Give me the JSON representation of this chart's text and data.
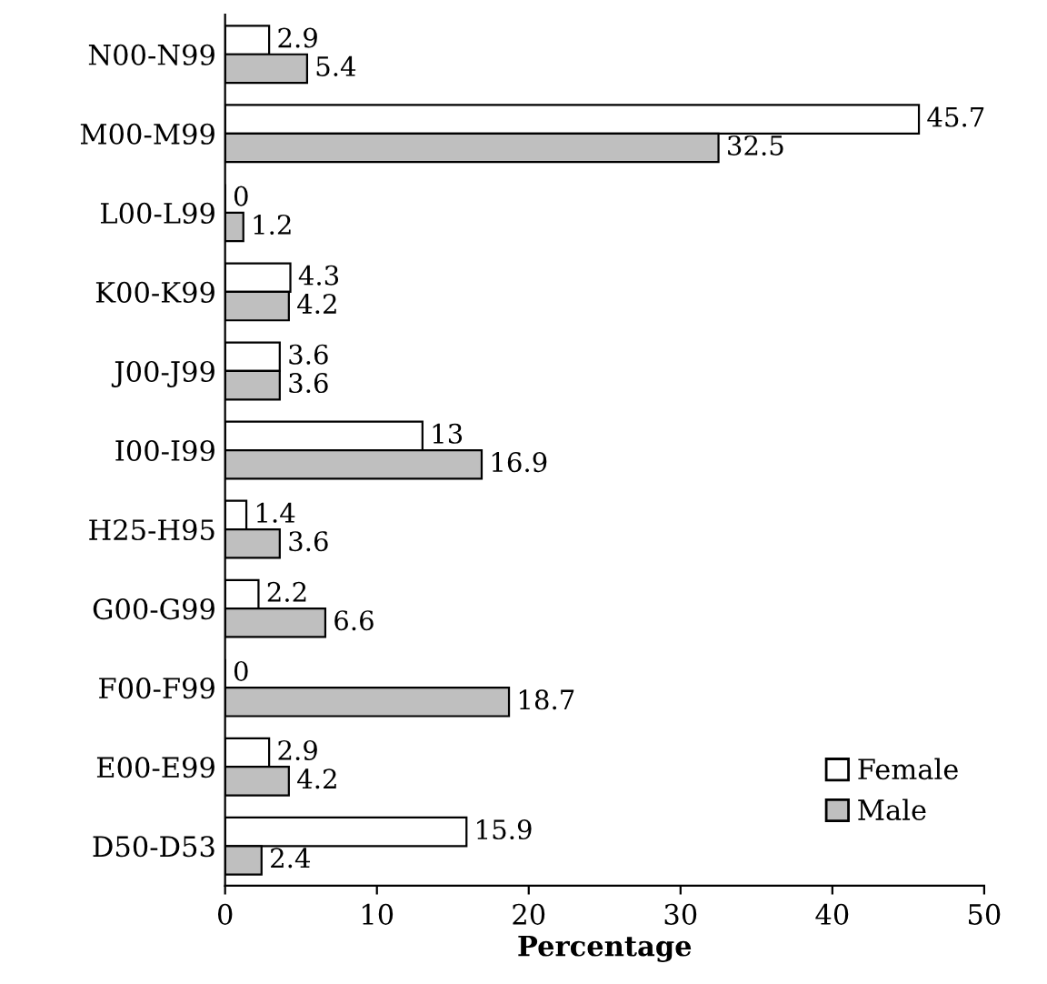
{
  "chart_data": {
    "type": "bar",
    "orientation": "horizontal",
    "xlabel": "Percentage",
    "categories": [
      "N00-N99",
      "M00-M99",
      "L00-L99",
      "K00-K99",
      "J00-J99",
      "I00-I99",
      "H25-H95",
      "G00-G99",
      "F00-F99",
      "E00-E99",
      "D50-D53"
    ],
    "series": [
      {
        "name": "Female",
        "color": "#ffffff",
        "values": [
          2.9,
          45.7,
          0,
          4.3,
          3.6,
          13,
          1.4,
          2.2,
          0,
          2.9,
          15.9
        ]
      },
      {
        "name": "Male",
        "color": "#bfbfbf",
        "values": [
          5.4,
          32.5,
          1.2,
          4.2,
          3.6,
          16.9,
          3.6,
          6.6,
          18.7,
          4.2,
          2.4
        ]
      }
    ],
    "xlim": [
      0,
      50
    ],
    "xticks": [
      0,
      10,
      20,
      30,
      40,
      50
    ],
    "data_labels": true,
    "legend": "bottom right",
    "grid": false
  }
}
